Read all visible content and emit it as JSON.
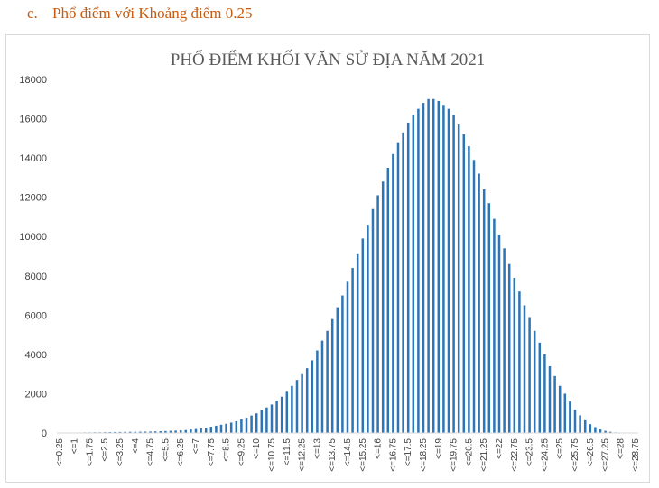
{
  "section": {
    "letter": "c.",
    "title": "Phổ điểm với Khoảng điểm 0.25"
  },
  "colors": {
    "bar": "#2e75b6",
    "axis": "#d9d9d9",
    "heading": "#c55a11"
  },
  "chart_data": {
    "type": "bar",
    "title": "PHỔ ĐIỂM KHỐI VĂN SỬ ĐỊA NĂM 2021",
    "xlabel": "",
    "ylabel": "",
    "ylim": [
      0,
      18000
    ],
    "yticks": [
      0,
      2000,
      4000,
      6000,
      8000,
      10000,
      12000,
      14000,
      16000,
      18000
    ],
    "grid": false,
    "legend": "none",
    "x_start": 0.25,
    "x_step": 0.25,
    "tick_label_every": 3,
    "tick_prefix": "<=",
    "values": [
      5,
      10,
      15,
      20,
      25,
      30,
      30,
      35,
      35,
      40,
      45,
      50,
      50,
      55,
      60,
      60,
      65,
      70,
      75,
      80,
      90,
      100,
      110,
      120,
      135,
      150,
      180,
      200,
      230,
      270,
      320,
      370,
      420,
      470,
      530,
      600,
      690,
      780,
      890,
      1000,
      1150,
      1300,
      1450,
      1650,
      1850,
      2100,
      2400,
      2700,
      3000,
      3300,
      3700,
      4200,
      4700,
      5200,
      5800,
      6400,
      7000,
      7700,
      8400,
      9100,
      9900,
      10600,
      11400,
      12100,
      12800,
      13500,
      14200,
      14800,
      15300,
      15800,
      16200,
      16500,
      16800,
      17000,
      17000,
      16900,
      16700,
      16500,
      16200,
      15700,
      15200,
      14600,
      13900,
      13200,
      12400,
      11700,
      10900,
      10100,
      9400,
      8600,
      7900,
      7200,
      6500,
      5900,
      5200,
      4600,
      4000,
      3400,
      2900,
      2400,
      2000,
      1600,
      1200,
      900,
      650,
      450,
      300,
      180,
      110,
      60,
      30,
      15,
      8,
      4,
      2
    ]
  }
}
